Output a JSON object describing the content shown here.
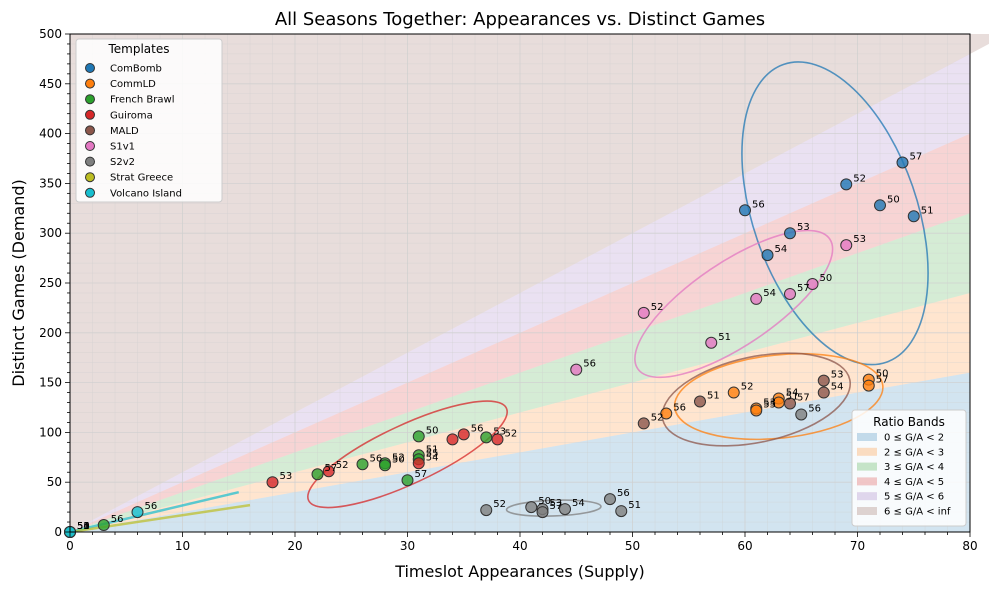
{
  "chart_data": {
    "type": "scatter",
    "title": "All Seasons Together: Appearances vs. Distinct Games",
    "xlabel": "Timeslot Appearances (Supply)",
    "ylabel": "Distinct Games (Demand)",
    "xlim": [
      0,
      80
    ],
    "ylim": [
      0,
      500
    ],
    "xticks": [
      0,
      10,
      20,
      30,
      40,
      50,
      60,
      70,
      80
    ],
    "yticks": [
      0,
      50,
      100,
      150,
      200,
      250,
      300,
      350,
      400,
      450,
      500
    ],
    "grid": true,
    "bands": {
      "title": "Ratio Bands",
      "legend_position": "lower-right",
      "items": [
        {
          "label": "0 ≤ G/A < 2",
          "lo": 0,
          "hi": 2,
          "color": "#1f77b4"
        },
        {
          "label": "2 ≤ G/A < 3",
          "lo": 2,
          "hi": 3,
          "color": "#ff7f0e"
        },
        {
          "label": "3 ≤ G/A < 4",
          "lo": 3,
          "hi": 4,
          "color": "#2ca02c"
        },
        {
          "label": "4 ≤ G/A < 5",
          "lo": 4,
          "hi": 5,
          "color": "#d62728"
        },
        {
          "label": "5 ≤ G/A < 6",
          "lo": 5,
          "hi": 6,
          "color": "#9467bd"
        },
        {
          "label": "6 ≤ G/A < inf",
          "lo": 6,
          "hi": null,
          "color": "#8c564b"
        }
      ]
    },
    "legend": {
      "title": "Templates",
      "position": "top-left"
    },
    "series": [
      {
        "name": "ComBomb",
        "color": "#1f77b4",
        "points": [
          {
            "x": 74,
            "y": 371,
            "label": "57"
          },
          {
            "x": 69,
            "y": 349,
            "label": "52"
          },
          {
            "x": 72,
            "y": 328,
            "label": "50"
          },
          {
            "x": 75,
            "y": 317,
            "label": "51"
          },
          {
            "x": 60,
            "y": 323,
            "label": "56"
          },
          {
            "x": 64,
            "y": 300,
            "label": "53"
          },
          {
            "x": 62,
            "y": 278,
            "label": "54"
          }
        ],
        "ellipse": {
          "cx": 68,
          "cy": 320,
          "rx": 7.3,
          "ry": 14,
          "angle": -19
        }
      },
      {
        "name": "CommLD",
        "color": "#ff7f0e",
        "points": [
          {
            "x": 71,
            "y": 153,
            "label": "50"
          },
          {
            "x": 71,
            "y": 147,
            "label": "57"
          },
          {
            "x": 59,
            "y": 140,
            "label": "52"
          },
          {
            "x": 63,
            "y": 134,
            "label": "54"
          },
          {
            "x": 63,
            "y": 130,
            "label": "51"
          },
          {
            "x": 53,
            "y": 119,
            "label": "56"
          },
          {
            "x": 61,
            "y": 124,
            "label": "53"
          },
          {
            "x": 61,
            "y": 122,
            "label": "55"
          }
        ],
        "ellipse": {
          "cx": 63,
          "cy": 136,
          "rx": 9.3,
          "ry": 3.7,
          "angle": -6
        }
      },
      {
        "name": "French Brawl",
        "color": "#2ca02c",
        "points": [
          {
            "x": 31,
            "y": 96,
            "label": "50"
          },
          {
            "x": 37,
            "y": 95,
            "label": "53"
          },
          {
            "x": 31,
            "y": 77,
            "label": "51"
          },
          {
            "x": 31,
            "y": 73,
            "label": "55"
          },
          {
            "x": 26,
            "y": 68,
            "label": "56"
          },
          {
            "x": 28,
            "y": 69,
            "label": "52"
          },
          {
            "x": 28,
            "y": 67,
            "label": "50"
          },
          {
            "x": 30,
            "y": 52,
            "label": "57"
          },
          {
            "x": 22,
            "y": 58,
            "label": "57"
          },
          {
            "x": 3,
            "y": 7,
            "label": "56"
          }
        ],
        "ellipse": null
      },
      {
        "name": "Guiroma",
        "color": "#d62728",
        "points": [
          {
            "x": 35,
            "y": 98,
            "label": "56"
          },
          {
            "x": 34,
            "y": 93,
            "label": ""
          },
          {
            "x": 38,
            "y": 93,
            "label": "52"
          },
          {
            "x": 31,
            "y": 69,
            "label": "54"
          },
          {
            "x": 23,
            "y": 61,
            "label": "52"
          },
          {
            "x": 18,
            "y": 50,
            "label": "53"
          }
        ],
        "ellipse": {
          "cx": 30,
          "cy": 78,
          "rx": 9.7,
          "ry": 2.6,
          "angle": -25
        }
      },
      {
        "name": "MALD",
        "color": "#8c564b",
        "points": [
          {
            "x": 67,
            "y": 152,
            "label": "53"
          },
          {
            "x": 67,
            "y": 140,
            "label": "54"
          },
          {
            "x": 56,
            "y": 131,
            "label": "51"
          },
          {
            "x": 64,
            "y": 129,
            "label": "57"
          },
          {
            "x": 51,
            "y": 109,
            "label": "52"
          }
        ],
        "ellipse": {
          "cx": 61,
          "cy": 133,
          "rx": 8.5,
          "ry": 3.8,
          "angle": -12
        }
      },
      {
        "name": "S1v1",
        "color": "#e377c2",
        "points": [
          {
            "x": 69,
            "y": 288,
            "label": "53"
          },
          {
            "x": 66,
            "y": 249,
            "label": "50"
          },
          {
            "x": 64,
            "y": 239,
            "label": "57"
          },
          {
            "x": 61,
            "y": 234,
            "label": "54"
          },
          {
            "x": 51,
            "y": 220,
            "label": "52"
          },
          {
            "x": 57,
            "y": 190,
            "label": "51"
          },
          {
            "x": 45,
            "y": 163,
            "label": "56"
          }
        ],
        "ellipse": {
          "cx": 59,
          "cy": 229,
          "rx": 10.3,
          "ry": 3.7,
          "angle": -34
        }
      },
      {
        "name": "S2v2",
        "color": "#7f7f7f",
        "points": [
          {
            "x": 48,
            "y": 33,
            "label": "56"
          },
          {
            "x": 37,
            "y": 22,
            "label": "52"
          },
          {
            "x": 41,
            "y": 25,
            "label": "50"
          },
          {
            "x": 42,
            "y": 23,
            "label": "53"
          },
          {
            "x": 44,
            "y": 23,
            "label": "54"
          },
          {
            "x": 42,
            "y": 20,
            "label": "57"
          },
          {
            "x": 49,
            "y": 21,
            "label": "51"
          },
          {
            "x": 65,
            "y": 118,
            "label": "56"
          }
        ],
        "ellipse": {
          "cx": 43,
          "cy": 24,
          "rx": 4.2,
          "ry": 0.7,
          "angle": -2
        }
      },
      {
        "name": "Strat Greece",
        "color": "#bcbd22",
        "points": [
          {
            "x": 0,
            "y": 0,
            "label": "50"
          },
          {
            "x": 0,
            "y": 0,
            "label": "55"
          },
          {
            "x": 0,
            "y": 0,
            "label": "54"
          }
        ],
        "ellipse": null
      },
      {
        "name": "Volcano Island",
        "color": "#17becf",
        "points": [
          {
            "x": 6,
            "y": 20,
            "label": "56"
          },
          {
            "x": 0,
            "y": 0,
            "label": "53"
          },
          {
            "x": 0,
            "y": 0,
            "label": "51"
          }
        ],
        "ellipse": null
      }
    ],
    "extra_lines": [
      {
        "color": "#17becf",
        "points": [
          [
            0,
            0
          ],
          [
            15,
            40
          ]
        ]
      },
      {
        "color": "#bcbd22",
        "points": [
          [
            0,
            0
          ],
          [
            16,
            27
          ]
        ]
      }
    ]
  }
}
